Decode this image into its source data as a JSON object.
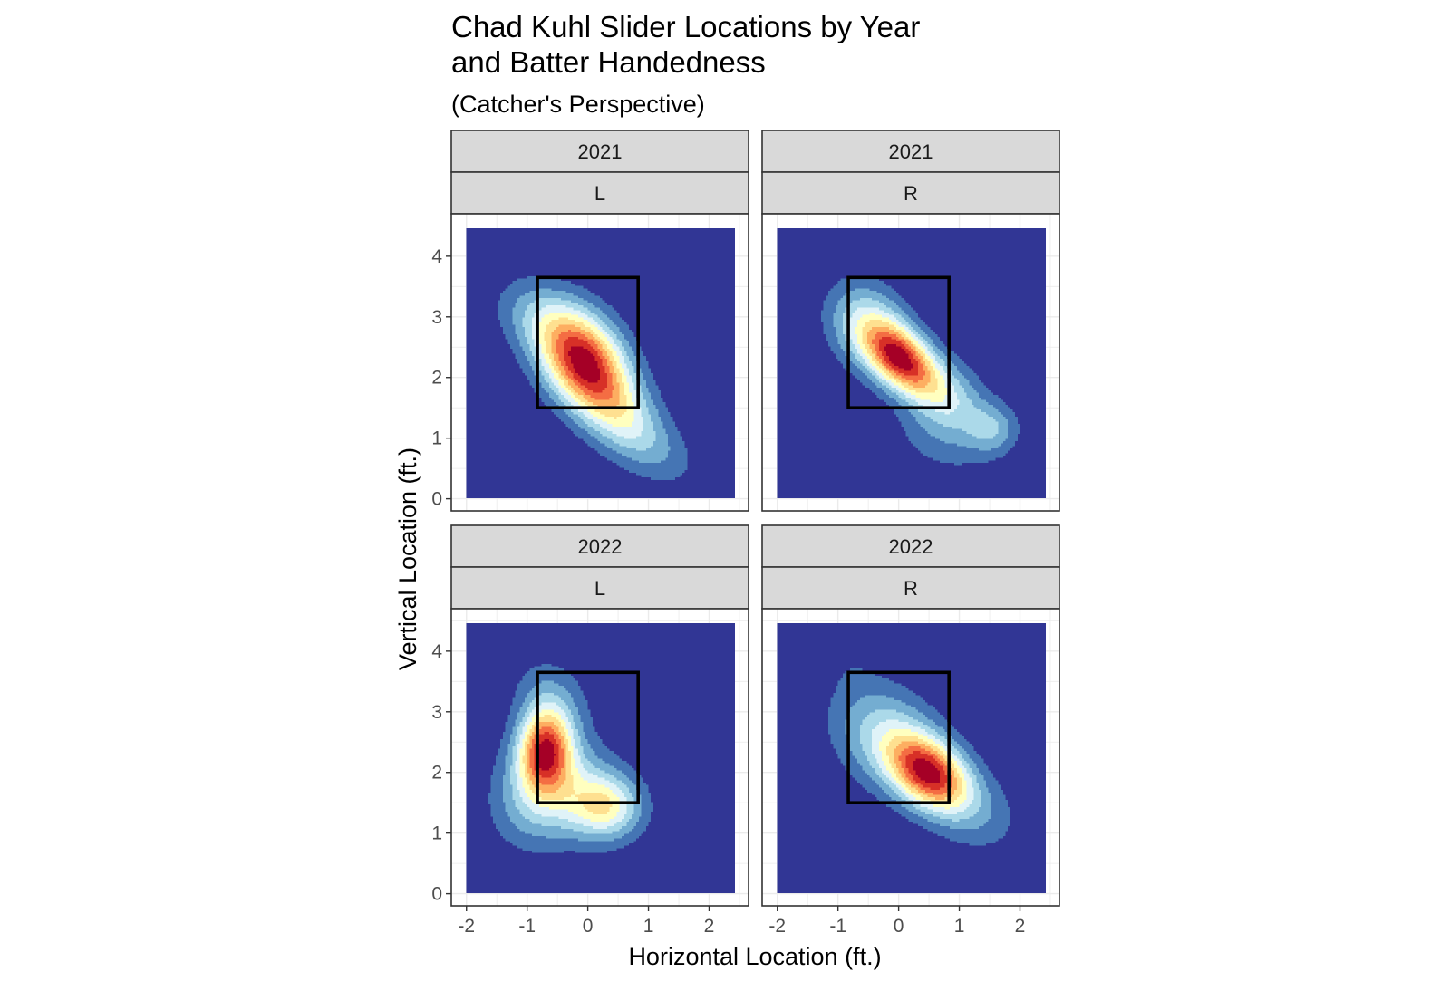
{
  "chart_data": {
    "type": "heatmap",
    "title_line1": "Chad Kuhl Slider Locations by Year",
    "title_line2": "and Batter Handedness",
    "subtitle": "(Catcher's Perspective)",
    "xlabel": "Horizontal Location (ft.)",
    "ylabel": "Vertical Location (ft.)",
    "xlim": [
      -2.25,
      2.65
    ],
    "ylim": [
      -0.2,
      4.7
    ],
    "x_ticks": [
      -2,
      -1,
      0,
      1,
      2
    ],
    "y_ticks": [
      0,
      1,
      2,
      3,
      4
    ],
    "x_tick_labels": [
      "-2",
      "-1",
      "0",
      "1",
      "2"
    ],
    "y_tick_labels": [
      "0",
      "1",
      "2",
      "3",
      "4"
    ],
    "strike_zone": {
      "x": [
        -0.83,
        0.83
      ],
      "y": [
        1.5,
        3.65
      ]
    },
    "density_range": {
      "x": [
        -2,
        2.5
      ],
      "y": [
        0,
        4.5
      ]
    },
    "fill_colors": [
      "#313695",
      "#4575b4",
      "#74add1",
      "#abd9e9",
      "#e0f3f8",
      "#ffffbf",
      "#fee090",
      "#fdae61",
      "#f46d43",
      "#d73027",
      "#a50026"
    ],
    "panels": [
      {
        "year": "2021",
        "batter": "L",
        "modes": [
          {
            "x": -0.1,
            "y": 2.35,
            "sx": 0.5,
            "sy": 0.55,
            "rho": -0.3,
            "w": 1.0
          },
          {
            "x": 0.4,
            "y": 1.55,
            "sx": 0.55,
            "sy": 0.6,
            "rho": -0.55,
            "w": 0.55
          },
          {
            "x": -0.8,
            "y": 3.0,
            "sx": 0.5,
            "sy": 0.45,
            "rho": -0.3,
            "w": 0.25
          },
          {
            "x": 1.2,
            "y": 0.8,
            "sx": 0.5,
            "sy": 0.45,
            "rho": -0.5,
            "w": 0.12
          }
        ]
      },
      {
        "year": "2021",
        "batter": "R",
        "modes": [
          {
            "x": 0.05,
            "y": 2.3,
            "sx": 0.4,
            "sy": 0.4,
            "rho": -0.45,
            "w": 1.0
          },
          {
            "x": -0.5,
            "y": 2.85,
            "sx": 0.45,
            "sy": 0.5,
            "rho": -0.2,
            "w": 0.45
          },
          {
            "x": 0.8,
            "y": 1.65,
            "sx": 0.45,
            "sy": 0.45,
            "rho": -0.3,
            "w": 0.4
          },
          {
            "x": 1.55,
            "y": 1.15,
            "sx": 0.3,
            "sy": 0.3,
            "rho": 0.0,
            "w": 0.28
          },
          {
            "x": 0.6,
            "y": 0.9,
            "sx": 0.55,
            "sy": 0.4,
            "rho": -0.4,
            "w": 0.12
          }
        ]
      },
      {
        "year": "2022",
        "batter": "L",
        "modes": [
          {
            "x": -0.7,
            "y": 2.4,
            "sx": 0.3,
            "sy": 0.48,
            "rho": 0.05,
            "w": 1.0
          },
          {
            "x": 0.3,
            "y": 1.45,
            "sx": 0.4,
            "sy": 0.35,
            "rho": 0.0,
            "w": 0.5
          },
          {
            "x": -0.2,
            "y": 1.8,
            "sx": 0.6,
            "sy": 0.6,
            "rho": -0.3,
            "w": 0.35
          },
          {
            "x": -0.9,
            "y": 1.5,
            "sx": 0.5,
            "sy": 0.55,
            "rho": 0.0,
            "w": 0.3
          },
          {
            "x": -0.6,
            "y": 3.3,
            "sx": 0.45,
            "sy": 0.45,
            "rho": -0.2,
            "w": 0.18
          }
        ]
      },
      {
        "year": "2022",
        "batter": "R",
        "modes": [
          {
            "x": 0.5,
            "y": 2.0,
            "sx": 0.45,
            "sy": 0.42,
            "rho": -0.35,
            "w": 1.0
          },
          {
            "x": -0.2,
            "y": 2.6,
            "sx": 0.6,
            "sy": 0.6,
            "rho": -0.25,
            "w": 0.4
          },
          {
            "x": 1.2,
            "y": 1.4,
            "sx": 0.55,
            "sy": 0.5,
            "rho": -0.3,
            "w": 0.2
          },
          {
            "x": -0.8,
            "y": 3.8,
            "sx": 0.3,
            "sy": 0.35,
            "rho": 0.0,
            "w": 0.05
          }
        ]
      }
    ]
  }
}
